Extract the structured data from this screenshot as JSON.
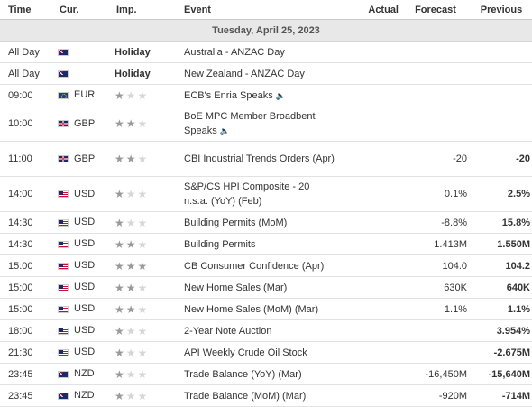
{
  "headers": {
    "time": "Time",
    "cur": "Cur.",
    "imp": "Imp.",
    "event": "Event",
    "actual": "Actual",
    "forecast": "Forecast",
    "previous": "Previous"
  },
  "date": "Tuesday, April 25, 2023",
  "rows": [
    {
      "time": "All Day",
      "flag": "au",
      "cur": "",
      "imp": "Holiday",
      "event": "Australia - ANZAC Day",
      "actual": "",
      "forecast": "",
      "previous": ""
    },
    {
      "time": "All Day",
      "flag": "nz",
      "cur": "",
      "imp": "Holiday",
      "event": "New Zealand - ANZAC Day",
      "actual": "",
      "forecast": "",
      "previous": ""
    },
    {
      "time": "09:00",
      "flag": "eu",
      "cur": "EUR",
      "stars": 1,
      "event": "ECB's Enria Speaks",
      "speaker": true,
      "actual": "",
      "forecast": "",
      "previous": ""
    },
    {
      "time": "10:00",
      "flag": "gb",
      "cur": "GBP",
      "stars": 2,
      "event": "BoE MPC Member Broadbent Speaks",
      "speaker": true,
      "actual": "",
      "forecast": "",
      "previous": ""
    },
    {
      "time": "11:00",
      "flag": "gb",
      "cur": "GBP",
      "stars": 2,
      "event": "CBI Industrial Trends Orders (Apr)",
      "actual": "",
      "forecast": "-20",
      "previous": "-20"
    },
    {
      "time": "14:00",
      "flag": "us",
      "cur": "USD",
      "stars": 1,
      "event": "S&P/CS HPI Composite - 20 n.s.a. (YoY) (Feb)",
      "actual": "",
      "forecast": "0.1%",
      "previous": "2.5%"
    },
    {
      "time": "14:30",
      "flag": "us",
      "cur": "USD",
      "stars": 1,
      "event": "Building Permits (MoM)",
      "actual": "",
      "forecast": "-8.8%",
      "previous": "15.8%"
    },
    {
      "time": "14:30",
      "flag": "us",
      "cur": "USD",
      "stars": 2,
      "event": "Building Permits",
      "actual": "",
      "forecast": "1.413M",
      "previous": "1.550M"
    },
    {
      "time": "15:00",
      "flag": "us",
      "cur": "USD",
      "stars": 3,
      "event": "CB Consumer Confidence (Apr)",
      "actual": "",
      "forecast": "104.0",
      "previous": "104.2"
    },
    {
      "time": "15:00",
      "flag": "us",
      "cur": "USD",
      "stars": 2,
      "event": "New Home Sales (Mar)",
      "actual": "",
      "forecast": "630K",
      "previous": "640K"
    },
    {
      "time": "15:00",
      "flag": "us",
      "cur": "USD",
      "stars": 2,
      "event": "New Home Sales (MoM) (Mar)",
      "actual": "",
      "forecast": "1.1%",
      "previous": "1.1%"
    },
    {
      "time": "18:00",
      "flag": "us",
      "cur": "USD",
      "stars": 1,
      "event": "2-Year Note Auction",
      "actual": "",
      "forecast": "",
      "previous": "3.954%"
    },
    {
      "time": "21:30",
      "flag": "us",
      "cur": "USD",
      "stars": 1,
      "event": "API Weekly Crude Oil Stock",
      "actual": "",
      "forecast": "",
      "previous": "-2.675M"
    },
    {
      "time": "23:45",
      "flag": "nz",
      "cur": "NZD",
      "stars": 1,
      "event": "Trade Balance (YoY) (Mar)",
      "actual": "",
      "forecast": "-16,450M",
      "previous": "-15,640M"
    },
    {
      "time": "23:45",
      "flag": "nz",
      "cur": "NZD",
      "stars": 1,
      "event": "Trade Balance (MoM) (Mar)",
      "actual": "",
      "forecast": "-920M",
      "previous": "-714M"
    }
  ]
}
